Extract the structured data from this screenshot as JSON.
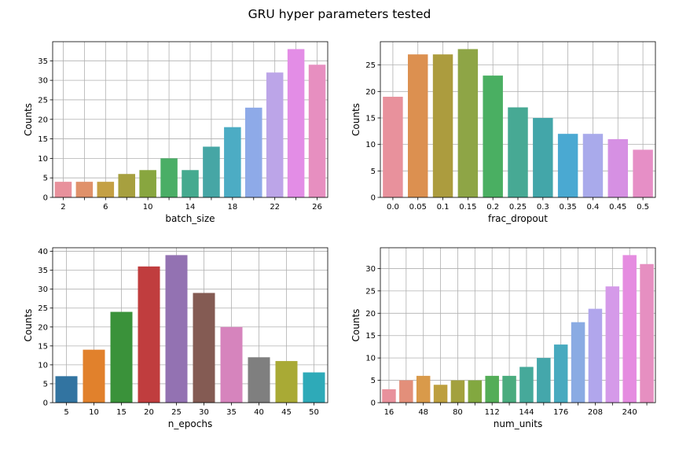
{
  "title": "GRU hyper parameters tested",
  "chart_data": [
    {
      "type": "bar",
      "xlabel": "batch_size",
      "ylabel": "Counts",
      "categories": [
        2,
        4,
        6,
        8,
        10,
        12,
        14,
        16,
        18,
        20,
        22,
        24,
        26
      ],
      "values": [
        4,
        4,
        4,
        6,
        7,
        10,
        7,
        13,
        18,
        23,
        32,
        38,
        34
      ],
      "xtick_labels": [
        "2",
        "",
        "6",
        "",
        "10",
        "",
        "14",
        "",
        "18",
        "",
        "22",
        "",
        "26"
      ],
      "yticks": [
        0,
        5,
        10,
        15,
        20,
        25,
        30,
        35
      ],
      "ylim": [
        0,
        39.9
      ],
      "grid": true,
      "colors": [
        "#e8919c",
        "#e0916a",
        "#c4a044",
        "#a7a03f",
        "#88a63f",
        "#4aae66",
        "#45aa8f",
        "#46a6a5",
        "#4cacc4",
        "#8eaae8",
        "#bca5e8",
        "#e38de6",
        "#e78fc0"
      ]
    },
    {
      "type": "bar",
      "xlabel": "frac_dropout",
      "ylabel": "Counts",
      "categories": [
        "0.0",
        "0.05",
        "0.1",
        "0.15",
        "0.2",
        "0.25",
        "0.3",
        "0.35",
        "0.4",
        "0.45",
        "0.5"
      ],
      "values": [
        19,
        27,
        27,
        28,
        23,
        17,
        15,
        12,
        12,
        11,
        9
      ],
      "xtick_labels": [
        "0.0",
        "0.05",
        "0.1",
        "0.15",
        "0.2",
        "0.25",
        "0.3",
        "0.35",
        "0.4",
        "0.45",
        "0.5"
      ],
      "yticks": [
        0,
        5,
        10,
        15,
        20,
        25
      ],
      "ylim": [
        0,
        29.4
      ],
      "grid": true,
      "colors": [
        "#e8919c",
        "#dc9050",
        "#ac9c3e",
        "#8ea546",
        "#4aaf62",
        "#47a994",
        "#43a6a9",
        "#4aa9d2",
        "#a9aaeb",
        "#d690e3",
        "#e68fc6"
      ]
    },
    {
      "type": "bar",
      "xlabel": "n_epochs",
      "ylabel": "Counts",
      "categories": [
        "5",
        "10",
        "15",
        "20",
        "25",
        "30",
        "35",
        "40",
        "45",
        "50"
      ],
      "values": [
        7,
        14,
        24,
        36,
        39,
        29,
        20,
        12,
        11,
        8
      ],
      "xtick_labels": [
        "5",
        "10",
        "15",
        "20",
        "25",
        "30",
        "35",
        "40",
        "45",
        "50"
      ],
      "yticks": [
        0,
        5,
        10,
        15,
        20,
        25,
        30,
        35,
        40
      ],
      "ylim": [
        0,
        40.95
      ],
      "grid": true,
      "colors": [
        "#3274a1",
        "#e1812c",
        "#3a923a",
        "#c03d3e",
        "#9372b2",
        "#845b53",
        "#d684bd",
        "#7f7f7f",
        "#a9aa35",
        "#2eaab8"
      ]
    },
    {
      "type": "bar",
      "xlabel": "num_units",
      "ylabel": "Counts",
      "categories": [
        16,
        32,
        48,
        64,
        80,
        96,
        112,
        128,
        144,
        160,
        176,
        192,
        208,
        224,
        240,
        256
      ],
      "values": [
        3,
        5,
        6,
        4,
        5,
        5,
        6,
        6,
        8,
        10,
        13,
        18,
        21,
        26,
        33,
        31
      ],
      "xtick_labels": [
        "16",
        "",
        "48",
        "",
        "80",
        "",
        "112",
        "",
        "144",
        "",
        "176",
        "",
        "208",
        "",
        "240",
        ""
      ],
      "yticks": [
        0,
        5,
        10,
        15,
        20,
        25,
        30
      ],
      "ylim": [
        0,
        34.65
      ],
      "grid": true,
      "colors": [
        "#e8919c",
        "#e38f7a",
        "#d99a4a",
        "#bd9f3e",
        "#a3a13e",
        "#82a840",
        "#54ad58",
        "#4aac7e",
        "#46a99a",
        "#44a7ab",
        "#48aabf",
        "#8aabe3",
        "#b1a6ec",
        "#d59ae9",
        "#e58ce0",
        "#e68fc1"
      ]
    }
  ]
}
